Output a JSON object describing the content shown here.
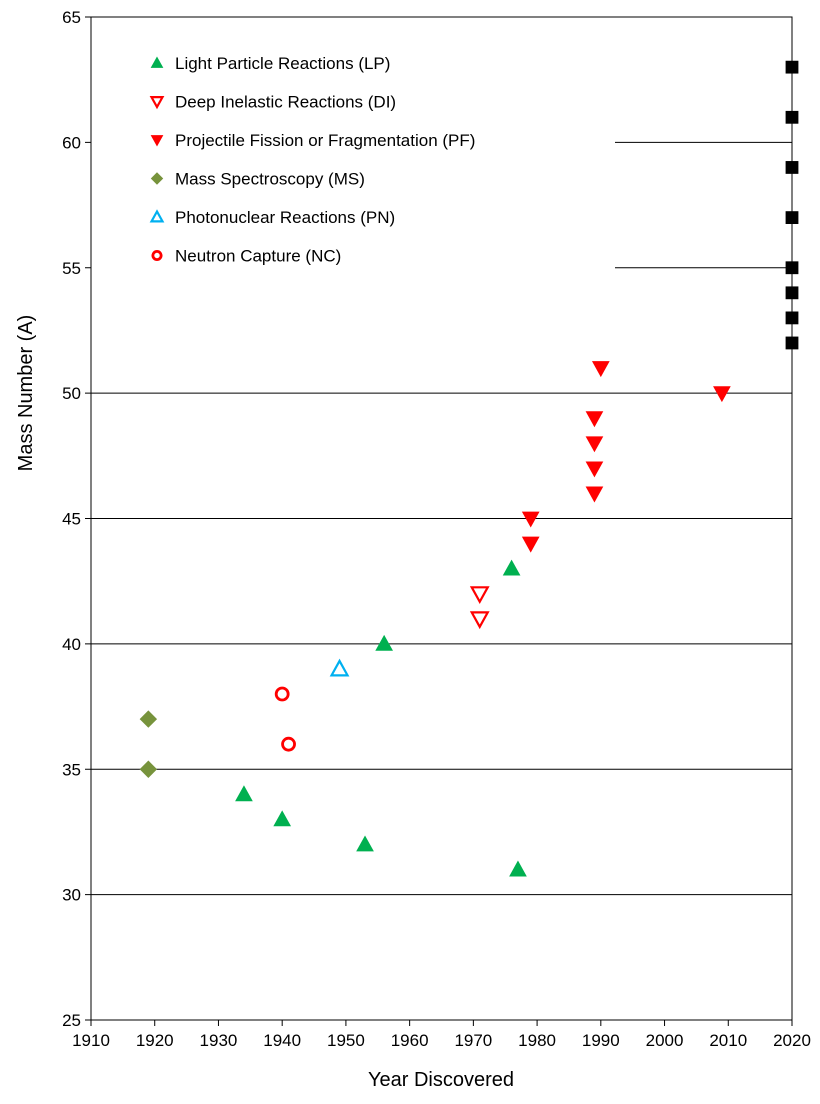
{
  "chart_data": {
    "type": "scatter",
    "xlabel": "Year Discovered",
    "ylabel": "Mass Number (A)",
    "xlim": [
      1910,
      2020
    ],
    "ylim": [
      25,
      65
    ],
    "xticks": [
      1910,
      1920,
      1930,
      1940,
      1950,
      1960,
      1970,
      1980,
      1990,
      2000,
      2010,
      2020
    ],
    "yticks": [
      25,
      30,
      35,
      40,
      45,
      50,
      55,
      60,
      65
    ],
    "grid": "horizontal",
    "legend_position": "top-left",
    "series": [
      {
        "name": "Light Particle Reactions (LP)",
        "marker": "triangle-up-filled",
        "color": "#00b050",
        "points": [
          [
            1934,
            34
          ],
          [
            1940,
            33
          ],
          [
            1953,
            32
          ],
          [
            1956,
            40
          ],
          [
            1976,
            43
          ],
          [
            1977,
            31
          ]
        ]
      },
      {
        "name": "Deep Inelastic Reactions (DI)",
        "marker": "triangle-down-open",
        "color": "#ff0000",
        "points": [
          [
            1971,
            41
          ],
          [
            1971,
            42
          ]
        ]
      },
      {
        "name": "Projectile Fission or Fragmentation (PF)",
        "marker": "triangle-down-filled",
        "color": "#ff0000",
        "points": [
          [
            1979,
            44
          ],
          [
            1979,
            45
          ],
          [
            1989,
            46
          ],
          [
            1989,
            47
          ],
          [
            1989,
            48
          ],
          [
            1989,
            49
          ],
          [
            1990,
            51
          ],
          [
            2009,
            50
          ]
        ]
      },
      {
        "name": "Mass Spectroscopy (MS)",
        "marker": "diamond-filled",
        "color": "#77933c",
        "points": [
          [
            1919,
            35
          ],
          [
            1919,
            37
          ]
        ]
      },
      {
        "name": "Photonuclear Reactions (PN)",
        "marker": "triangle-up-open",
        "color": "#00b0f0",
        "points": [
          [
            1949,
            39
          ]
        ]
      },
      {
        "name": "Neutron Capture (NC)",
        "marker": "circle-open",
        "color": "#ff0000",
        "points": [
          [
            1940,
            38
          ],
          [
            1941,
            36
          ]
        ]
      },
      {
        "name": "",
        "marker": "square-filled",
        "color": "#000000",
        "points": [
          [
            2020,
            52
          ],
          [
            2020,
            53
          ],
          [
            2020,
            54
          ],
          [
            2020,
            55
          ],
          [
            2020,
            57
          ],
          [
            2020,
            59
          ],
          [
            2020,
            61
          ],
          [
            2020,
            63
          ]
        ]
      }
    ]
  }
}
